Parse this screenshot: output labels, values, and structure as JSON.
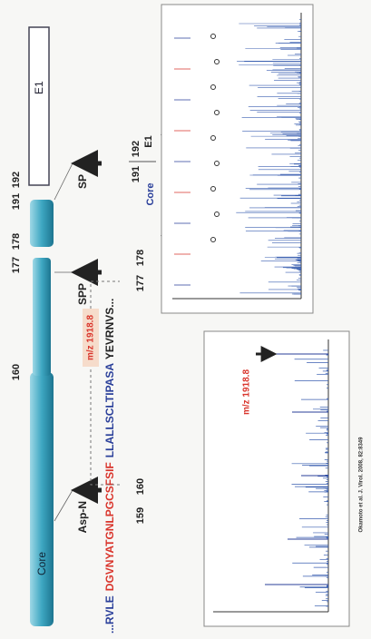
{
  "diagram": {
    "protein_map": {
      "bar_labels": {
        "core": "Core",
        "e1": "E1"
      },
      "positions": [
        "160",
        "177",
        "178",
        "191",
        "192"
      ]
    },
    "enzymes": [
      "Asp-N",
      "SPP",
      "SP"
    ],
    "sequence": [
      {
        "text": "...RVLE",
        "color": "#2a3f9a"
      },
      {
        "text": "DGVNYATGNLPGCSFSIF",
        "color": "#d9342b"
      },
      {
        "text": "LLALLSCLTIPASA",
        "color": "#2a3f9a"
      },
      {
        "text": "YEVRNVS...",
        "color": "#222222"
      }
    ],
    "residue_numbers": [
      "159",
      "160",
      "177",
      "178",
      "191",
      "192"
    ],
    "peptide_mass": "m/z 1918.8",
    "cleavage": {
      "left": "Core",
      "right": "E1"
    },
    "spectrum_label": "m/z 1918.8",
    "citation": "Okamoto et al. J. Virol. 2008, 82:8349"
  }
}
